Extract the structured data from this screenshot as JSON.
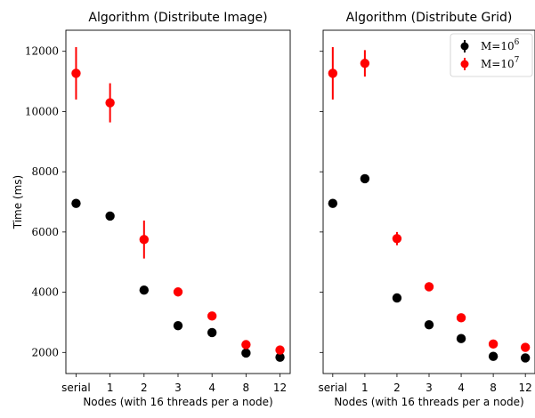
{
  "chart_data": [
    {
      "type": "scatter",
      "title": "Algorithm (Distribute Image)",
      "xlabel": "Nodes (with 16 threads per a node)",
      "ylabel": "Time (ms)",
      "categories": [
        "serial",
        "1",
        "2",
        "3",
        "4",
        "8",
        "12"
      ],
      "ylim": [
        1300,
        12700
      ],
      "yticks": [
        2000,
        4000,
        6000,
        8000,
        10000,
        12000
      ],
      "grid": false,
      "series": [
        {
          "name": "M=10^6",
          "color": "#000000",
          "values": [
            6950,
            6530,
            4070,
            2890,
            2660,
            1980,
            1840
          ],
          "errors": [
            0,
            0,
            0,
            0,
            0,
            0,
            0
          ]
        },
        {
          "name": "M=10^7",
          "color": "#ff0000",
          "values": [
            11270,
            10290,
            5750,
            4010,
            3210,
            2260,
            2080
          ],
          "errors": [
            870,
            650,
            630,
            0,
            0,
            0,
            0
          ]
        }
      ]
    },
    {
      "type": "scatter",
      "title": "Algorithm (Distribute Grid)",
      "xlabel": "Nodes (with 16 threads per a node)",
      "ylabel": "",
      "categories": [
        "serial",
        "1",
        "2",
        "3",
        "4",
        "8",
        "12"
      ],
      "ylim": [
        1300,
        12700
      ],
      "grid": false,
      "legend": "top-right",
      "series": [
        {
          "name": "M=10^6",
          "color": "#000000",
          "values": [
            6950,
            7770,
            3810,
            2920,
            2460,
            1870,
            1820
          ],
          "errors": [
            0,
            0,
            0,
            0,
            0,
            0,
            0
          ]
        },
        {
          "name": "M=10^7",
          "color": "#ff0000",
          "values": [
            11270,
            11600,
            5780,
            4180,
            3150,
            2280,
            2170
          ],
          "errors": [
            870,
            440,
            220,
            150,
            0,
            0,
            0
          ]
        }
      ]
    }
  ],
  "legend": {
    "entries": [
      {
        "base": "M=10",
        "exp": "6",
        "color": "#000000"
      },
      {
        "base": "M=10",
        "exp": "7",
        "color": "#ff0000"
      }
    ]
  }
}
